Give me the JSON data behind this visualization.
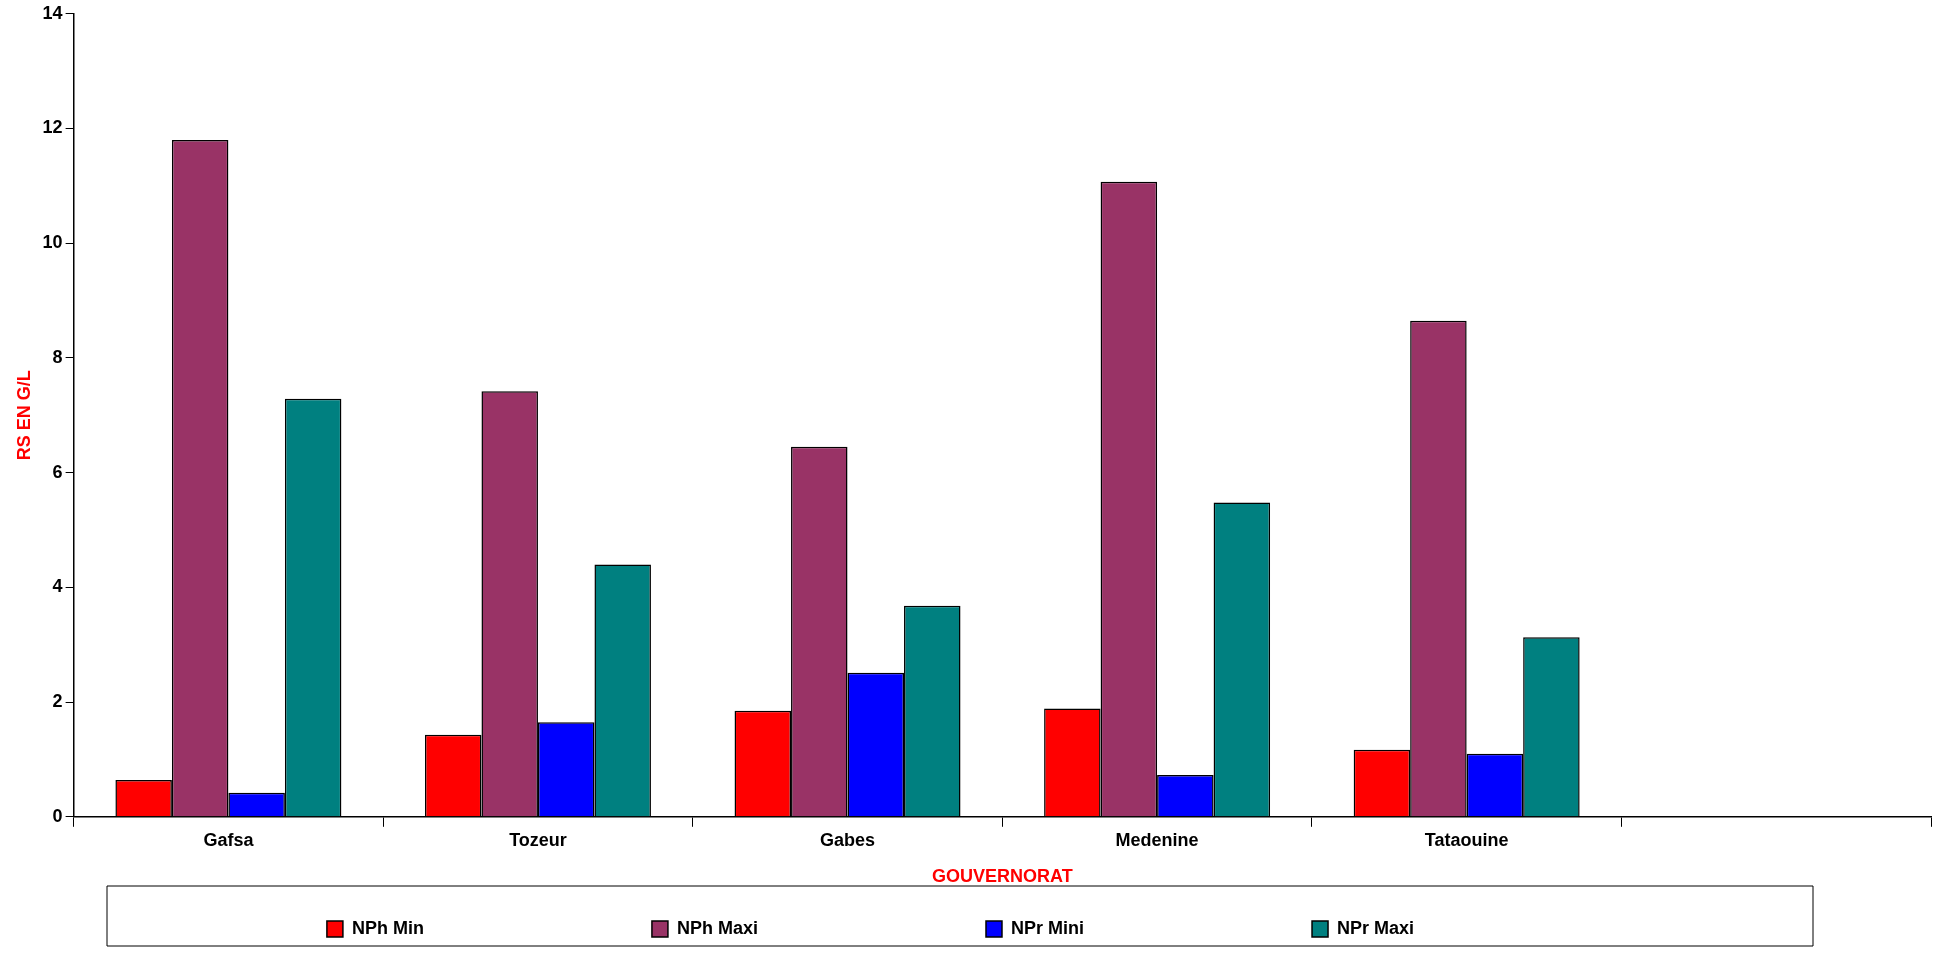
{
  "chart_data": {
    "type": "bar",
    "xlabel": "GOUVERNORAT",
    "ylabel": "RS EN G/L",
    "categories": [
      "Gafsa",
      "Tozeur",
      "Gabes",
      "Medenine",
      "Tataouine",
      null
    ],
    "series": [
      {
        "name": "NPh Min",
        "color": "#ff0000",
        "values": [
          0.64,
          1.43,
          1.85,
          1.89,
          1.17,
          null
        ]
      },
      {
        "name": "NPh Maxi",
        "color": "#993366",
        "values": [
          11.8,
          7.42,
          6.45,
          11.07,
          8.65,
          null
        ]
      },
      {
        "name": "NPr Mini",
        "color": "#0000ff",
        "values": [
          0.42,
          1.65,
          2.51,
          0.73,
          1.1,
          null
        ]
      },
      {
        "name": "NPr Maxi",
        "color": "#008080",
        "values": [
          7.29,
          4.4,
          3.68,
          5.48,
          3.13,
          null
        ]
      }
    ],
    "ylim": [
      0,
      14
    ],
    "yticks": [
      0,
      2,
      4,
      6,
      8,
      10,
      12,
      14
    ],
    "grid": false,
    "legend": "bottom"
  }
}
